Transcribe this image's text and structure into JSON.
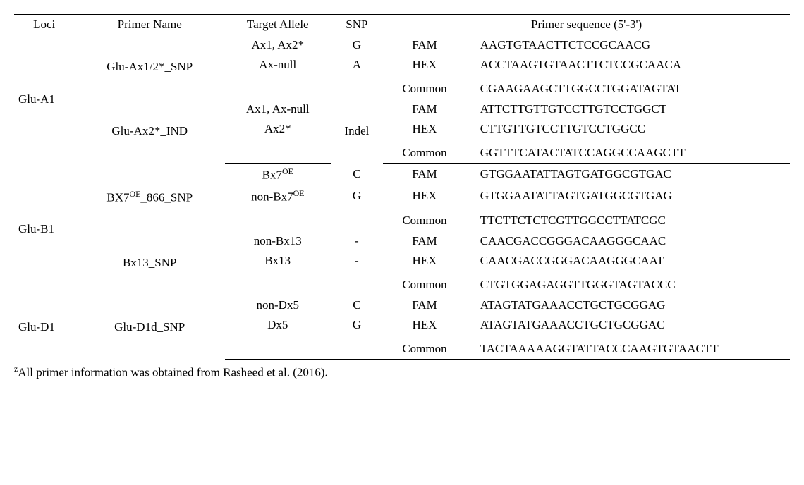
{
  "columns": {
    "loci": "Loci",
    "primer": "Primer Name",
    "target": "Target Allele",
    "snp": "SNP",
    "seqheader": "Primer sequence (5'-3')"
  },
  "loci": [
    {
      "name": "Glu-A1",
      "primers": [
        {
          "name_html": "Glu-Ax1/2*_SNP",
          "rows": [
            {
              "target_html": "Ax1, Ax2*",
              "snp": "G",
              "dye": "FAM",
              "seq": "AAGTGTAACTTCTCCGCAACG"
            },
            {
              "target_html": "Ax-null",
              "snp": "A",
              "dye": "HEX",
              "seq": "ACCTAAGTGTAACTTCTCCGCAACA"
            },
            {
              "spacer": true
            },
            {
              "target_html": "",
              "snp": "",
              "dye": "Common",
              "seq": "CGAAGAAGCTTGGCCTGGATAGTAT"
            }
          ]
        },
        {
          "name_html": "Glu-Ax2*_IND",
          "snp_merged": "Indel",
          "rows": [
            {
              "target_html": "Ax1, Ax-null",
              "snp": "",
              "dye": "FAM",
              "seq": "ATTCTTGTTGTCCTTGTCCTGGCT"
            },
            {
              "target_html": "Ax2*",
              "snp": "",
              "dye": "HEX",
              "seq": "CTTGTTGTCCTTGTCCTGGCC"
            },
            {
              "spacer": true
            },
            {
              "target_html": "",
              "snp": "",
              "dye": "Common",
              "seq": "GGTTTCATACTATCCAGGCCAAGCTT"
            }
          ]
        }
      ]
    },
    {
      "name": "Glu-B1",
      "primers": [
        {
          "name_html": "BX7<sup>OE</sup>_866_SNP",
          "rows": [
            {
              "target_html": "Bx7<sup>OE</sup>",
              "snp": "C",
              "dye": "FAM",
              "seq": "GTGGAATATTAGTGATGGCGTGAC"
            },
            {
              "target_html": "non-Bx7<sup>OE</sup>",
              "snp": "G",
              "dye": "HEX",
              "seq": "GTGGAATATTAGTGATGGCGTGAG"
            },
            {
              "spacer": true
            },
            {
              "target_html": "",
              "snp": "",
              "dye": "Common",
              "seq": "TTCTTCTCTCGTTGGCCTTATCGC"
            }
          ]
        },
        {
          "name_html": "Bx13_SNP",
          "rows": [
            {
              "target_html": "non-Bx13",
              "snp": "-",
              "dye": "FAM",
              "seq": "CAACGACCGGGACAAGGGCAAC"
            },
            {
              "target_html": "Bx13",
              "snp": "-",
              "dye": "HEX",
              "seq": "CAACGACCGGGACAAGGGCAAT"
            },
            {
              "spacer": true
            },
            {
              "target_html": "",
              "snp": "",
              "dye": "Common",
              "seq": "CTGTGGAGAGGTTGGGTAGTACCC"
            }
          ]
        }
      ]
    },
    {
      "name": "Glu-D1",
      "primers": [
        {
          "name_html": "Glu-D1d_SNP",
          "rows": [
            {
              "target_html": "non-Dx5",
              "snp": "C",
              "dye": "FAM",
              "seq": "ATAGTATGAAACCTGCTGCGGAG"
            },
            {
              "target_html": "Dx5",
              "snp": "G",
              "dye": "HEX",
              "seq": "ATAGTATGAAACCTGCTGCGGAC"
            },
            {
              "spacer": true
            },
            {
              "target_html": "",
              "snp": "",
              "dye": "Common",
              "seq": "TACTAAAAAGGTATTACCCAAGTGTAACTT"
            }
          ]
        }
      ]
    }
  ],
  "footnote_html": "<sup>z</sup>All primer information was obtained from Rasheed et al. (2016)."
}
